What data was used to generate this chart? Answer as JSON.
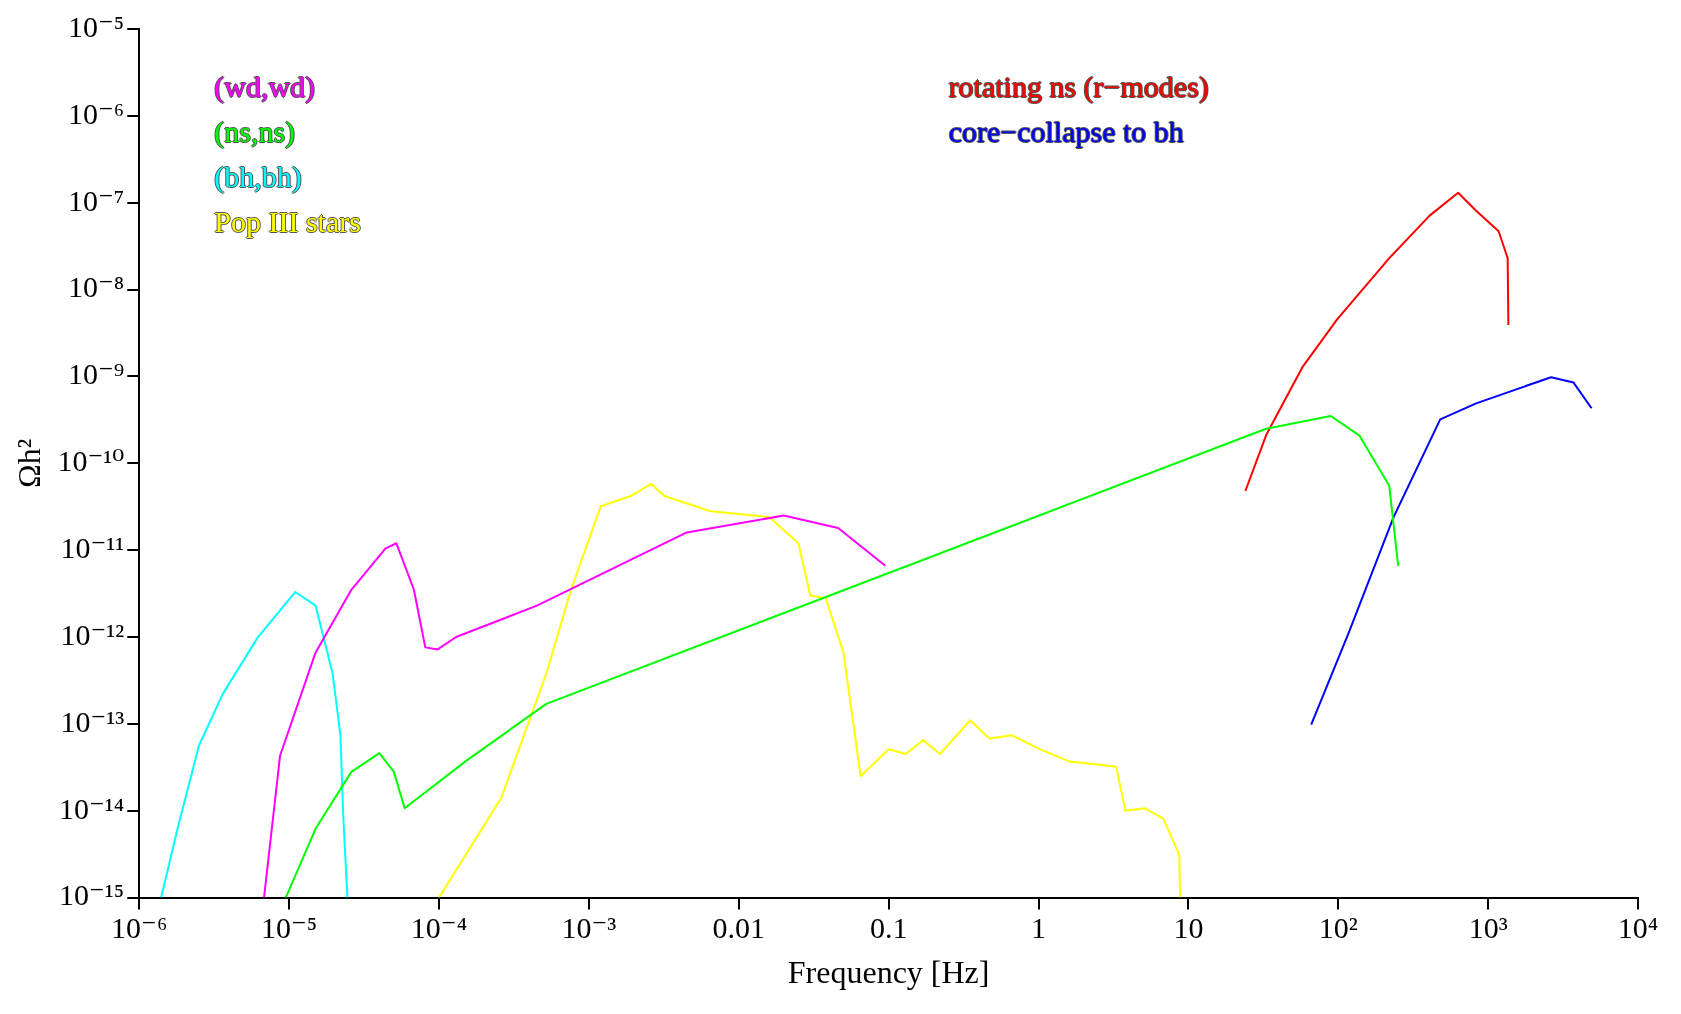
{
  "chart_data": {
    "type": "line",
    "xlabel": "Frequency [Hz]",
    "ylabel": "Ωh²",
    "log": "xy",
    "grid": false,
    "legend": "top",
    "marker": "none",
    "line_style": "solid",
    "xlim": [
      1e-06,
      10000
    ],
    "ylim": [
      1e-15,
      1e-05
    ],
    "xticks": [
      {
        "value": 1e-06,
        "label": "10⁻⁶"
      },
      {
        "value": 1e-05,
        "label": "10⁻⁵"
      },
      {
        "value": 0.0001,
        "label": "10⁻⁴"
      },
      {
        "value": 0.001,
        "label": "10⁻³"
      },
      0.01,
      0.1,
      1,
      10,
      {
        "value": 100,
        "label": "10²"
      },
      {
        "value": 1000,
        "label": "10³"
      },
      {
        "value": 10000,
        "label": "10⁴"
      }
    ],
    "yticks": [
      {
        "value": 1e-15,
        "label": "10⁻¹⁵"
      },
      {
        "value": 1e-14,
        "label": "10⁻¹⁴"
      },
      {
        "value": 1e-13,
        "label": "10⁻¹³"
      },
      {
        "value": 1e-12,
        "label": "10⁻¹²"
      },
      {
        "value": 1e-11,
        "label": "10⁻¹¹"
      },
      {
        "value": 1e-10,
        "label": "10⁻¹⁰"
      },
      {
        "value": 1e-09,
        "label": "10⁻⁹"
      },
      {
        "value": 1e-08,
        "label": "10⁻⁸"
      },
      {
        "value": 1e-07,
        "label": "10⁻⁷"
      },
      {
        "value": 1e-06,
        "label": "10⁻⁶"
      },
      {
        "value": 1e-05,
        "label": "10⁻⁵"
      }
    ],
    "series": [
      {
        "name": "(wd,wd)",
        "color": "#ff00ff",
        "x": [
          6.8e-06,
          8.7e-06,
          1.5e-05,
          2.6e-05,
          4.4e-05,
          5.2e-05,
          6.8e-05,
          8.1e-05,
          9.8e-05,
          0.00013,
          0.00045,
          0.0045,
          0.02,
          0.046,
          0.095
        ],
        "values": [
          1e-15,
          4.3e-14,
          6.6e-13,
          3.5e-12,
          1.05e-11,
          1.2e-11,
          3.5e-12,
          7.6e-13,
          7.2e-13,
          1e-12,
          2.3e-12,
          1.6e-11,
          2.5e-11,
          1.8e-11,
          6.6e-12
        ]
      },
      {
        "name": "(ns,ns)",
        "color": "#00ff00",
        "x": [
          9.5e-06,
          1.5e-05,
          2.6e-05,
          4e-05,
          5e-05,
          5.9e-05,
          0.00015,
          0.00052,
          33,
          89,
          138,
          219,
          251
        ],
        "values": [
          1e-15,
          6.2e-15,
          2.8e-14,
          4.6e-14,
          2.8e-14,
          1.07e-14,
          3.7e-14,
          1.7e-13,
          2.5e-10,
          3.5e-10,
          2.1e-10,
          5.5e-11,
          6.6e-12
        ]
      },
      {
        "name": "(bh,bh)",
        "color": "#00ffff",
        "x": [
          1.4e-06,
          1.8e-06,
          2.5e-06,
          3.6e-06,
          6.2e-06,
          1.1e-05,
          1.5e-05,
          1.95e-05,
          2.2e-05,
          2.3e-05,
          2.45e-05
        ],
        "values": [
          1e-15,
          6.2e-15,
          5.6e-14,
          2.2e-13,
          1e-12,
          3.3e-12,
          2.3e-12,
          3.8e-13,
          7.4e-14,
          8.1e-15,
          1e-15
        ]
      },
      {
        "name": "Pop III stars",
        "color": "#ffff00",
        "x": [
          0.0001,
          0.00026,
          0.00052,
          0.00076,
          0.0012,
          0.0019,
          0.0026,
          0.0032,
          0.0065,
          0.016,
          0.025,
          0.03,
          0.038,
          0.05,
          0.065,
          0.1,
          0.13,
          0.17,
          0.22,
          0.35,
          0.47,
          0.66,
          1.0,
          1.6,
          2.5,
          3.3,
          3.8,
          5.1,
          6.8,
          8.7,
          8.8
        ],
        "values": [
          1e-15,
          1.4e-14,
          3.8e-13,
          3.5e-12,
          3.2e-11,
          4.2e-11,
          5.8e-11,
          4.2e-11,
          2.8e-11,
          2.4e-11,
          1.2e-11,
          3e-12,
          2.8e-12,
          6.6e-13,
          2.5e-14,
          5.1e-14,
          4.5e-14,
          6.5e-14,
          4.5e-14,
          1.1e-13,
          6.8e-14,
          7.4e-14,
          5.2e-14,
          3.7e-14,
          3.4e-14,
          3.2e-14,
          1e-14,
          1.07e-14,
          8.1e-15,
          3.1e-15,
          1e-15
        ]
      },
      {
        "name": "rotating ns (r−modes)",
        "color": "#ff0000",
        "x": [
          24,
          33,
          58,
          98,
          219,
          407,
          631,
          832,
          1175,
          1350,
          1365
        ],
        "values": [
          4.8e-11,
          2.1e-10,
          1.3e-09,
          4.5e-09,
          2.3e-08,
          7.1e-08,
          1.3e-07,
          8.1e-08,
          4.7e-08,
          2.3e-08,
          3.9e-09
        ]
      },
      {
        "name": "core−collapse to bh",
        "color": "#0000ff",
        "x": [
          66,
          117,
          234,
          479,
          832,
          2630,
          3715,
          4900
        ],
        "values": [
          9.8e-14,
          1.1e-12,
          2.4e-11,
          3.2e-10,
          4.9e-10,
          9.8e-10,
          8.5e-10,
          4.3e-10
        ]
      }
    ]
  }
}
